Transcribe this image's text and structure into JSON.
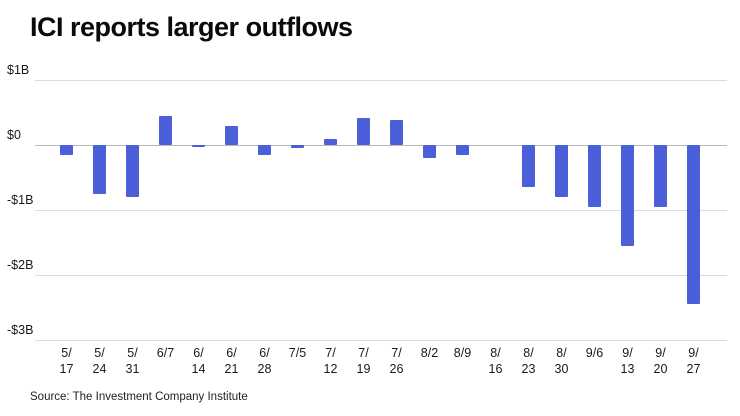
{
  "title": "ICI reports larger outflows",
  "source": "Source: The Investment Company Institute",
  "colors": {
    "bar": "#4a5fd8",
    "grid": "#dcdcdc",
    "zero_line": "#b9b9b9",
    "text": "#1a1a1a"
  },
  "chart_data": {
    "type": "bar",
    "title": "ICI reports larger outflows",
    "xlabel": "",
    "ylabel": "",
    "ylim": [
      -3,
      1
    ],
    "grid": "horizontal",
    "legend": "none",
    "yticks": [
      {
        "value": 1,
        "label": "$1B"
      },
      {
        "value": 0,
        "label": "$0"
      },
      {
        "value": -1,
        "label": "-$1B"
      },
      {
        "value": -2,
        "label": "-$2B"
      },
      {
        "value": -3,
        "label": "-$3B"
      }
    ],
    "categories": [
      "5/\n17",
      "5/\n24",
      "5/\n31",
      "6/7",
      "6/\n14",
      "6/\n21",
      "6/\n28",
      "7/5",
      "7/\n12",
      "7/\n19",
      "7/\n26",
      "8/2",
      "8/9",
      "8/\n16",
      "8/\n23",
      "8/\n30",
      "9/6",
      "9/\n13",
      "9/\n20",
      "9/\n27"
    ],
    "values": [
      -0.15,
      -0.75,
      -0.8,
      0.45,
      -0.03,
      0.3,
      -0.15,
      -0.04,
      0.1,
      0.42,
      0.38,
      -0.2,
      -0.15,
      0,
      -0.65,
      -0.8,
      -0.95,
      -1.55,
      -0.95,
      -2.45
    ],
    "units": "billions of dollars"
  }
}
